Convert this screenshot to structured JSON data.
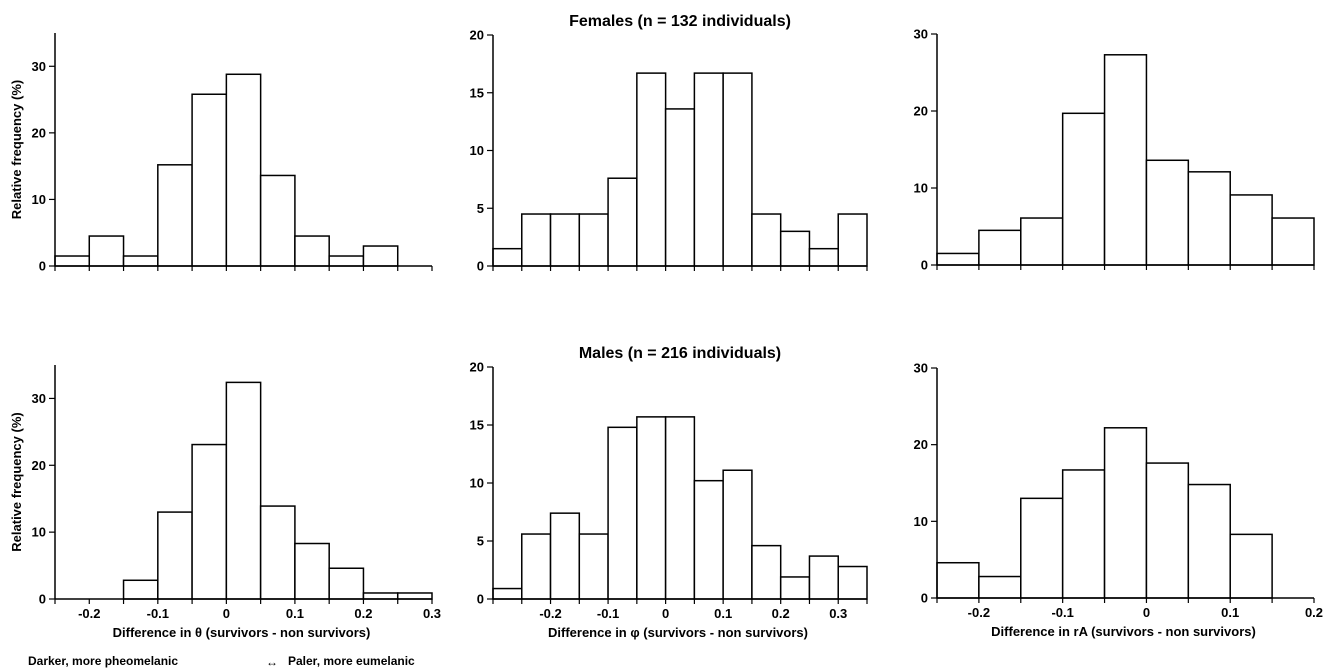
{
  "figure": {
    "caption_left": "Darker, more pheomelanic",
    "caption_right": "Paler, more eumelanic",
    "arrow_glyph": "↔"
  },
  "chart_data": [
    {
      "type": "bar",
      "row": "females",
      "col": 0,
      "title": "",
      "xlabel": "",
      "ylabel": "Relative frequency (%)",
      "xlim": [
        -0.25,
        0.3
      ],
      "ylim": [
        0,
        35
      ],
      "yticks": [
        0,
        10,
        20,
        30
      ],
      "xticks": [],
      "bin_width": 0.05,
      "bin_starts": [
        -0.25,
        -0.2,
        -0.15,
        -0.1,
        -0.05,
        0,
        0.05,
        0.1,
        0.15,
        0.2
      ],
      "values": [
        1.5,
        4.5,
        1.5,
        15.2,
        25.8,
        28.8,
        13.6,
        4.5,
        1.5,
        3.0
      ]
    },
    {
      "type": "bar",
      "row": "females",
      "col": 1,
      "title": "Females (n = 132 individuals)",
      "xlabel": "",
      "ylabel": "",
      "xlim": [
        -0.3,
        0.35
      ],
      "ylim": [
        0,
        20
      ],
      "yticks": [
        0,
        5,
        10,
        15,
        20
      ],
      "xticks": [],
      "bin_width": 0.05,
      "bin_starts": [
        -0.3,
        -0.25,
        -0.2,
        -0.15,
        -0.1,
        -0.05,
        0,
        0.05,
        0.1,
        0.15,
        0.2,
        0.25,
        0.3
      ],
      "values": [
        1.5,
        4.5,
        4.5,
        4.5,
        7.6,
        16.7,
        13.6,
        16.7,
        16.7,
        4.5,
        3.0,
        1.5,
        4.5
      ]
    },
    {
      "type": "bar",
      "row": "females",
      "col": 2,
      "title": "",
      "xlabel": "",
      "ylabel": "",
      "xlim": [
        -0.25,
        0.2
      ],
      "ylim": [
        0,
        30
      ],
      "yticks": [
        0,
        10,
        20,
        30
      ],
      "xticks": [],
      "bin_width": 0.05,
      "bin_starts": [
        -0.25,
        -0.2,
        -0.15,
        -0.1,
        -0.05,
        0,
        0.05,
        0.1,
        0.15
      ],
      "values": [
        1.5,
        4.5,
        6.1,
        19.7,
        27.3,
        13.6,
        12.1,
        9.1,
        6.1
      ]
    },
    {
      "type": "bar",
      "row": "males",
      "col": 0,
      "title": "",
      "xlabel": "Difference in θ (survivors - non survivors)",
      "ylabel": "Relative frequency (%)",
      "xlim": [
        -0.25,
        0.3
      ],
      "ylim": [
        0,
        35
      ],
      "yticks": [
        0,
        10,
        20,
        30
      ],
      "xticks": [
        -0.2,
        -0.1,
        0,
        0.1,
        0.2,
        0.3
      ],
      "xtick_labels": [
        "-0.2",
        "-0.1",
        "0",
        "0.1",
        "0.2",
        "0.3"
      ],
      "bin_width": 0.05,
      "bin_starts": [
        -0.15,
        -0.1,
        -0.05,
        0,
        0.05,
        0.1,
        0.15,
        0.2,
        0.25
      ],
      "values": [
        2.8,
        13.0,
        23.1,
        32.4,
        13.9,
        8.3,
        4.6,
        0.9,
        0.9
      ]
    },
    {
      "type": "bar",
      "row": "males",
      "col": 1,
      "title": "Males (n = 216 individuals)",
      "xlabel": "Difference in φ (survivors - non survivors)",
      "ylabel": "",
      "xlim": [
        -0.3,
        0.35
      ],
      "ylim": [
        0,
        20
      ],
      "yticks": [
        0,
        5,
        10,
        15,
        20
      ],
      "xticks": [
        -0.2,
        -0.1,
        0,
        0.1,
        0.2,
        0.3
      ],
      "xtick_labels": [
        "-0.2",
        "-0.1",
        "0",
        "0.1",
        "0.2",
        "0.3"
      ],
      "bin_width": 0.05,
      "bin_starts": [
        -0.3,
        -0.25,
        -0.2,
        -0.15,
        -0.1,
        -0.05,
        0,
        0.05,
        0.1,
        0.15,
        0.2,
        0.25,
        0.3
      ],
      "values": [
        0.9,
        5.6,
        7.4,
        5.6,
        14.8,
        15.7,
        15.7,
        10.2,
        11.1,
        4.6,
        1.9,
        3.7,
        2.8
      ]
    },
    {
      "type": "bar",
      "row": "males",
      "col": 2,
      "title": "",
      "xlabel": "Difference in rA (survivors - non survivors)",
      "ylabel": "",
      "xlim": [
        -0.25,
        0.2
      ],
      "ylim": [
        0,
        30
      ],
      "yticks": [
        0,
        10,
        20,
        30
      ],
      "xticks": [
        -0.2,
        -0.1,
        0,
        0.1,
        0.2
      ],
      "xtick_labels": [
        "-0.2",
        "-0.1",
        "0",
        "0.1",
        "0.2"
      ],
      "bin_width": 0.05,
      "bin_starts": [
        -0.25,
        -0.2,
        -0.15,
        -0.1,
        -0.05,
        0,
        0.05,
        0.1
      ],
      "values": [
        4.6,
        2.8,
        13.0,
        16.7,
        22.2,
        17.6,
        14.8,
        8.3
      ]
    }
  ]
}
